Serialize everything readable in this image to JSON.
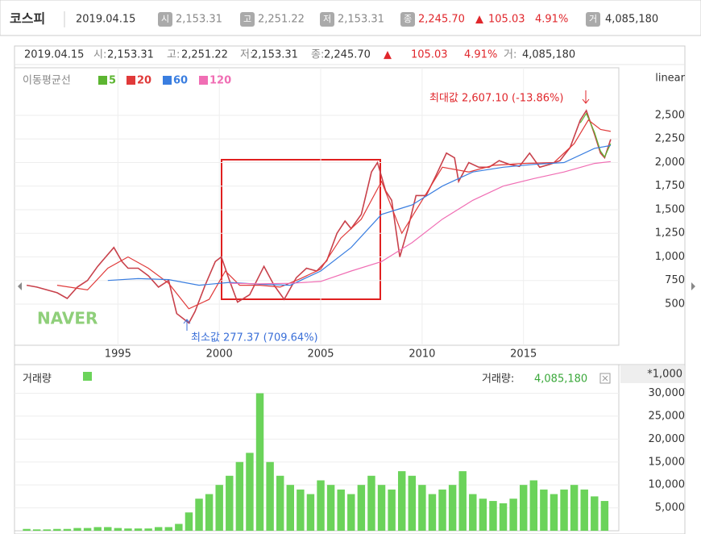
{
  "header": {
    "name": "코스피",
    "date": "2019.04.15",
    "items": [
      {
        "icon": "시",
        "value": "2,153.31"
      },
      {
        "icon": "고",
        "value": "2,251.22"
      },
      {
        "icon": "저",
        "value": "2,153.31"
      },
      {
        "icon": "종",
        "value": "2,245.70"
      }
    ],
    "arrow": "▲",
    "change": "105.03",
    "change_pct": "4.91%",
    "volume_icon": "거",
    "volume": "4,085,180"
  },
  "info": {
    "date": "2019.04.15",
    "items": [
      {
        "label": "시:",
        "value": "2,153.31"
      },
      {
        "label": "고:",
        "value": "2,251.22"
      },
      {
        "label": "저:",
        "value": "2,153.31"
      },
      {
        "label": "종:",
        "value": "2,245.70"
      }
    ],
    "arrow": "▲",
    "change": "105.03",
    "change_pct": "4.91%",
    "volume_label": "거:",
    "volume": "4,085,180"
  },
  "chart_data": [
    {
      "type": "line",
      "scale": "linear",
      "legend_title": "이동평균선",
      "max_label": "최대값 2,607.10 (-13.86%)",
      "min_label": "최소값 277.37 (709.64%)",
      "watermark": "NAVER",
      "xlim": [
        1989.9,
        2019.7
      ],
      "xticks": [
        1995,
        2000,
        2005,
        2010,
        2015
      ],
      "ylim": [
        64,
        3004
      ],
      "yticks": [
        500,
        750,
        {
          "value": 1000,
          "label": "1,000"
        },
        {
          "value": 1250,
          "label": "1,250"
        },
        {
          "value": 1500,
          "label": "1,500"
        },
        {
          "value": 1750,
          "label": "1,750"
        },
        {
          "value": 2000,
          "label": "2,000"
        },
        {
          "value": 2250,
          "label": "2,250"
        },
        {
          "value": 2500,
          "label": "2,500"
        }
      ],
      "price": {
        "color": "#c8414b",
        "x": [
          1990.5,
          1991,
          1991.5,
          1992,
          1992.5,
          1993,
          1993.5,
          1994,
          1994.8,
          1995.2,
          1995.5,
          1996,
          1996.5,
          1997,
          1997.5,
          1997.9,
          1998.5,
          1998.8,
          1999.3,
          1999.8,
          2000.1,
          2000.5,
          2000.9,
          2001.5,
          2002.2,
          2002.7,
          2003.2,
          2003.8,
          2004.3,
          2004.8,
          2005.3,
          2005.8,
          2006.2,
          2006.5,
          2007,
          2007.5,
          2007.8,
          2008.2,
          2008.5,
          2008.9,
          2009.3,
          2009.7,
          2010.2,
          2010.7,
          2011.2,
          2011.6,
          2011.8,
          2012.3,
          2012.8,
          2013.3,
          2013.8,
          2014.3,
          2014.8,
          2015.3,
          2015.8,
          2016.3,
          2016.8,
          2017.3,
          2017.8,
          2018.1,
          2018.5,
          2018.8,
          2019,
          2019.3
        ],
        "values": [
          700,
          680,
          650,
          620,
          560,
          680,
          750,
          900,
          1100,
          950,
          880,
          880,
          800,
          680,
          750,
          400,
          300,
          420,
          700,
          950,
          1000,
          750,
          520,
          600,
          900,
          700,
          550,
          780,
          880,
          850,
          960,
          1250,
          1380,
          1300,
          1450,
          1900,
          2000,
          1700,
          1600,
          1000,
          1300,
          1650,
          1650,
          1870,
          2100,
          2050,
          1800,
          2000,
          1950,
          1950,
          2020,
          1980,
          1960,
          2100,
          1950,
          1980,
          2020,
          2160,
          2450,
          2550,
          2300,
          2100,
          2050,
          2245
        ]
      },
      "series": [
        {
          "name": "5",
          "color": "#5cb531",
          "x": [
            2017.8,
            2018.1,
            2018.5,
            2018.8,
            2019,
            2019.3
          ],
          "values": [
            2420,
            2520,
            2320,
            2120,
            2060,
            2200
          ]
        },
        {
          "name": "20",
          "color": "#e03a3a",
          "x": [
            1992,
            1993.5,
            1994.5,
            1995.5,
            1996.5,
            1997.5,
            1998.5,
            1999.5,
            2000.3,
            2001,
            2002,
            2003,
            2004,
            2005,
            2006,
            2007,
            2008,
            2009,
            2010,
            2011,
            2012.3,
            2013.5,
            2015,
            2016.5,
            2017.5,
            2018.2,
            2018.8,
            2019.3
          ],
          "values": [
            700,
            650,
            880,
            1000,
            880,
            720,
            450,
            550,
            850,
            700,
            700,
            680,
            770,
            870,
            1200,
            1400,
            1800,
            1250,
            1600,
            1950,
            1900,
            1970,
            1990,
            2000,
            2200,
            2450,
            2350,
            2330
          ]
        },
        {
          "name": "60",
          "color": "#3a7ee0",
          "x": [
            1994.5,
            1996,
            1997.5,
            1999,
            2000.5,
            2002,
            2003.5,
            2005,
            2006.5,
            2008,
            2009.5,
            2011,
            2012.5,
            2014,
            2015.5,
            2017,
            2018.5,
            2019.3
          ],
          "values": [
            750,
            770,
            760,
            700,
            730,
            710,
            700,
            850,
            1100,
            1450,
            1550,
            1750,
            1900,
            1950,
            1980,
            2000,
            2150,
            2180
          ]
        },
        {
          "name": "120",
          "color": "#f06eb4",
          "x": [
            2000.5,
            2002,
            2003.5,
            2005,
            2006.5,
            2008,
            2009.5,
            2011,
            2012.5,
            2014,
            2015.5,
            2017,
            2018.5,
            2019.3
          ],
          "values": [
            720,
            715,
            720,
            740,
            850,
            950,
            1150,
            1400,
            1600,
            1750,
            1830,
            1900,
            1990,
            2010
          ]
        }
      ]
    },
    {
      "type": "bar",
      "title": "거래량",
      "color": "#6bd35a",
      "unit_label": "*1,000",
      "current_label": "거래량:",
      "current_value": "4,085,180",
      "xlim": [
        1989.9,
        2019.7
      ],
      "ylim": [
        0,
        36250
      ],
      "yticks": [
        {
          "value": 5000,
          "label": "5,000"
        },
        {
          "value": 10000,
          "label": "10,000"
        },
        {
          "value": 15000,
          "label": "15,000"
        },
        {
          "value": 20000,
          "label": "20,000"
        },
        {
          "value": 25000,
          "label": "25,000"
        },
        {
          "value": 30000,
          "label": "30,000"
        }
      ],
      "x": [
        1990.5,
        1991,
        1991.5,
        1992,
        1992.5,
        1993,
        1993.5,
        1994,
        1994.5,
        1995,
        1995.5,
        1996,
        1996.5,
        1997,
        1997.5,
        1998,
        1998.5,
        1999,
        1999.5,
        2000,
        2000.5,
        2001,
        2001.5,
        2002,
        2002.5,
        2003,
        2003.5,
        2004,
        2004.5,
        2005,
        2005.5,
        2006,
        2006.5,
        2007,
        2007.5,
        2008,
        2008.5,
        2009,
        2009.5,
        2010,
        2010.5,
        2011,
        2011.5,
        2012,
        2012.5,
        2013,
        2013.5,
        2014,
        2014.5,
        2015,
        2015.5,
        2016,
        2016.5,
        2017,
        2017.5,
        2018,
        2018.5,
        2019
      ],
      "values": [
        400,
        300,
        300,
        400,
        400,
        600,
        600,
        800,
        800,
        600,
        500,
        500,
        500,
        800,
        800,
        1500,
        4000,
        7000,
        8000,
        10000,
        12000,
        15000,
        17000,
        30000,
        15000,
        12000,
        10000,
        9000,
        8000,
        11000,
        10000,
        9000,
        8000,
        10000,
        12000,
        10000,
        9000,
        13000,
        12000,
        10000,
        8000,
        9000,
        10000,
        13000,
        8000,
        7000,
        6500,
        6000,
        7000,
        10000,
        11000,
        9000,
        8000,
        9000,
        10000,
        9000,
        7500,
        6500
      ]
    }
  ]
}
